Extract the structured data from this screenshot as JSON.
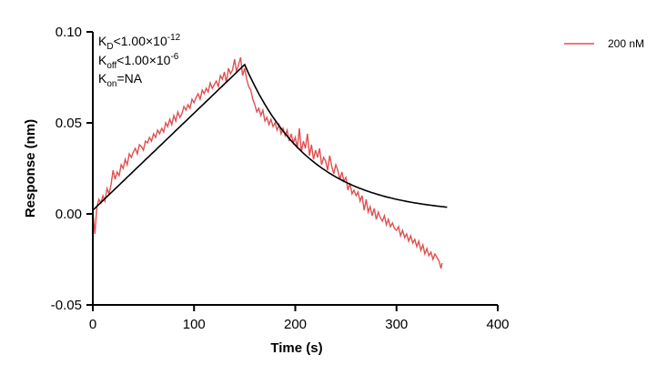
{
  "chart_data": {
    "type": "line",
    "title": "",
    "xlabel": "Time (s)",
    "ylabel": "Response (nm)",
    "xlim": [
      0,
      400
    ],
    "ylim": [
      -0.05,
      0.1
    ],
    "x_ticks": [
      0,
      100,
      200,
      300,
      400
    ],
    "x_tick_labels": [
      "0",
      "100",
      "200",
      "300",
      "400"
    ],
    "y_ticks": [
      -0.05,
      0.0,
      0.05,
      0.1
    ],
    "y_tick_labels": [
      "-0.05",
      "0.00",
      "0.05",
      "0.10"
    ],
    "grid": false,
    "legend_position": "top-right",
    "annotations": {
      "kd": {
        "main": "K",
        "sub": "D",
        "rest": "<1.00×10",
        "sup": "-12"
      },
      "koff": {
        "main": "K",
        "sub": "off",
        "rest": "<1.00×10",
        "sup": "-6"
      },
      "kon": {
        "main": "K",
        "sub": "on",
        "rest": "=NA"
      }
    },
    "series": [
      {
        "name": "200 nM",
        "color": "#e05050",
        "role": "measured",
        "x": [
          0,
          2,
          4,
          6,
          8,
          10,
          12,
          14,
          16,
          18,
          20,
          22,
          24,
          26,
          28,
          30,
          32,
          34,
          36,
          38,
          40,
          42,
          44,
          46,
          48,
          50,
          52,
          54,
          56,
          58,
          60,
          62,
          64,
          66,
          68,
          70,
          72,
          74,
          76,
          78,
          80,
          82,
          84,
          86,
          88,
          90,
          92,
          94,
          96,
          98,
          100,
          102,
          104,
          106,
          108,
          110,
          112,
          114,
          116,
          118,
          120,
          122,
          124,
          126,
          128,
          130,
          132,
          134,
          136,
          138,
          140,
          142,
          144,
          146,
          148,
          150,
          152,
          154,
          156,
          158,
          160,
          162,
          164,
          166,
          168,
          170,
          172,
          174,
          176,
          178,
          180,
          182,
          184,
          186,
          188,
          190,
          192,
          194,
          196,
          198,
          200,
          202,
          204,
          206,
          208,
          210,
          212,
          214,
          216,
          218,
          220,
          222,
          224,
          226,
          228,
          230,
          232,
          234,
          236,
          238,
          240,
          242,
          244,
          246,
          248,
          250,
          252,
          254,
          256,
          258,
          260,
          262,
          264,
          266,
          268,
          270,
          272,
          274,
          276,
          278,
          280,
          282,
          284,
          286,
          288,
          290,
          292,
          294,
          296,
          298,
          300,
          302,
          304,
          306,
          308,
          310,
          312,
          314,
          316,
          318,
          320,
          322,
          324,
          326,
          328,
          330,
          332,
          334,
          336,
          338,
          340,
          342,
          344,
          345
        ],
        "y": [
          0.002,
          -0.011,
          0.004,
          0.008,
          0.006,
          0.01,
          0.007,
          0.014,
          0.011,
          0.016,
          0.024,
          0.019,
          0.023,
          0.021,
          0.027,
          0.025,
          0.03,
          0.027,
          0.033,
          0.031,
          0.034,
          0.036,
          0.033,
          0.038,
          0.037,
          0.035,
          0.04,
          0.039,
          0.042,
          0.04,
          0.044,
          0.042,
          0.046,
          0.044,
          0.047,
          0.045,
          0.05,
          0.048,
          0.052,
          0.049,
          0.054,
          0.051,
          0.056,
          0.053,
          0.055,
          0.059,
          0.057,
          0.06,
          0.058,
          0.063,
          0.061,
          0.064,
          0.066,
          0.063,
          0.068,
          0.066,
          0.069,
          0.067,
          0.072,
          0.069,
          0.071,
          0.073,
          0.07,
          0.076,
          0.074,
          0.078,
          0.072,
          0.08,
          0.077,
          0.079,
          0.085,
          0.078,
          0.082,
          0.086,
          0.076,
          0.08,
          0.074,
          0.07,
          0.068,
          0.063,
          0.06,
          0.056,
          0.058,
          0.054,
          0.057,
          0.051,
          0.053,
          0.049,
          0.052,
          0.048,
          0.05,
          0.046,
          0.049,
          0.044,
          0.047,
          0.043,
          0.046,
          0.04,
          0.044,
          0.039,
          0.042,
          0.036,
          0.047,
          0.034,
          0.04,
          0.036,
          0.044,
          0.032,
          0.038,
          0.03,
          0.035,
          0.031,
          0.036,
          0.027,
          0.031,
          0.029,
          0.024,
          0.032,
          0.026,
          0.022,
          0.027,
          0.024,
          0.019,
          0.023,
          0.018,
          0.02,
          0.013,
          0.017,
          0.011,
          0.013,
          0.01,
          0.012,
          0.007,
          0.01,
          0.002,
          0.008,
          0.001,
          0.004,
          -0.001,
          0.003,
          -0.003,
          0.001,
          -0.002,
          -0.004,
          -0.001,
          -0.006,
          -0.003,
          -0.007,
          -0.005,
          -0.008,
          -0.009,
          -0.007,
          -0.012,
          -0.009,
          -0.013,
          -0.011,
          -0.015,
          -0.012,
          -0.016,
          -0.014,
          -0.018,
          -0.015,
          -0.02,
          -0.017,
          -0.022,
          -0.019,
          -0.023,
          -0.021,
          -0.025,
          -0.022,
          -0.024,
          -0.026,
          -0.03,
          -0.027
        ]
      },
      {
        "role": "fit",
        "color": "#000000",
        "model": {
          "assoc_end": 150,
          "assoc_start_y": 0.002,
          "assoc_end_y": 0.082,
          "dissoc_plateau": 0.0,
          "dissoc_rate": 0.0155,
          "end": 350
        }
      }
    ]
  }
}
